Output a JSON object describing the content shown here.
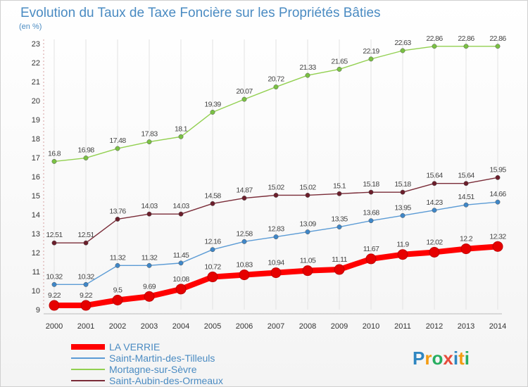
{
  "chart_data": {
    "type": "line",
    "title": "Evolution du Taux de Taxe Foncière sur les Propriétés Bâties",
    "unit_label": "(en %)",
    "x": [
      2000,
      2001,
      2002,
      2003,
      2004,
      2005,
      2006,
      2007,
      2008,
      2009,
      2010,
      2011,
      2012,
      2013,
      2014
    ],
    "x_tick_labels": [
      "2000",
      "2001",
      "2002",
      "2003",
      "2004",
      "2005",
      "2006",
      "2007",
      "2008",
      "2009",
      "2010",
      "2011",
      "2012",
      "2013",
      "2014"
    ],
    "ylim": [
      9,
      23
    ],
    "y_ticks": [
      9,
      10,
      11,
      12,
      13,
      14,
      15,
      16,
      17,
      18,
      19,
      20,
      21,
      22,
      23
    ],
    "y_tick_labels": [
      "9",
      "10",
      "11",
      "12",
      "13",
      "14",
      "15",
      "16",
      "17",
      "18",
      "19",
      "20",
      "21",
      "22",
      "23"
    ],
    "grid": "vertical",
    "legend_position": "bottom-left",
    "series": [
      {
        "name": "Mortagne-sur-Sèvre",
        "color": "#92d050",
        "marker_color": "#7ac143",
        "values": [
          16.8,
          16.98,
          17.48,
          17.83,
          18.1,
          19.39,
          20.07,
          20.72,
          21.33,
          21.65,
          22.19,
          22.63,
          22.86,
          22.86,
          22.86
        ],
        "labels": [
          "16.8",
          "16.98",
          "17.48",
          "17.83",
          "18.1",
          "19.39",
          "20.07",
          "20.72",
          "21.33",
          "21.65",
          "22.19",
          "22.63",
          "22.86",
          "22.86",
          "22.86"
        ]
      },
      {
        "name": "Saint-Aubin-des-Ormeaux",
        "color": "#7a2c38",
        "marker_color": "#6b1e2b",
        "values": [
          12.51,
          12.51,
          13.76,
          14.03,
          14.03,
          14.58,
          14.87,
          15.02,
          15.02,
          15.1,
          15.18,
          15.18,
          15.64,
          15.64,
          15.95
        ],
        "labels": [
          "12.51",
          "12.51",
          "13.76",
          "14.03",
          "14.03",
          "14.58",
          "14.87",
          "15.02",
          "15.02",
          "15.1",
          "15.18",
          "15.18",
          "15.64",
          "15.64",
          "15.95"
        ]
      },
      {
        "name": "Saint-Martin-des-Tilleuls",
        "color": "#5b9bd5",
        "marker_color": "#3f87c8",
        "values": [
          10.32,
          10.32,
          11.32,
          11.32,
          11.45,
          12.16,
          12.58,
          12.83,
          13.09,
          13.35,
          13.68,
          13.95,
          14.23,
          14.51,
          14.66
        ],
        "labels": [
          "10.32",
          "10.32",
          "11.32",
          "11.32",
          "11.45",
          "12.16",
          "12.58",
          "12.83",
          "13.09",
          "13.35",
          "13.68",
          "13.95",
          "14.23",
          "14.51",
          "14.66"
        ]
      },
      {
        "name": "LA VERRIE",
        "color": "#ff0000",
        "marker_color": "#e60000",
        "values": [
          9.22,
          9.22,
          9.5,
          9.69,
          10.08,
          10.72,
          10.83,
          10.94,
          11.05,
          11.11,
          11.67,
          11.9,
          12.02,
          12.2,
          12.32
        ],
        "labels": [
          "9.22",
          "9.22",
          "9.5",
          "9.69",
          "10.08",
          "10.72",
          "10.83",
          "10.94",
          "11.05",
          "11.11",
          "11.67",
          "11.9",
          "12.02",
          "12.2",
          "12.32"
        ],
        "bold": true
      }
    ]
  },
  "legend": [
    {
      "name": "LA VERRIE",
      "color": "#ff0000",
      "bold": true
    },
    {
      "name": "Saint-Martin-des-Tilleuls",
      "color": "#5b9bd5"
    },
    {
      "name": "Mortagne-sur-Sèvre",
      "color": "#92d050"
    },
    {
      "name": "Saint-Aubin-des-Ormeaux",
      "color": "#7a2c38"
    }
  ],
  "brand": {
    "letters": [
      "P",
      "r",
      "o",
      "x",
      "i",
      "t",
      "i"
    ],
    "colors": [
      "#2e86c1",
      "#f39c12",
      "#27ae60",
      "#e74c3c",
      "#2e86c1",
      "#f39c12",
      "#27ae60"
    ]
  }
}
